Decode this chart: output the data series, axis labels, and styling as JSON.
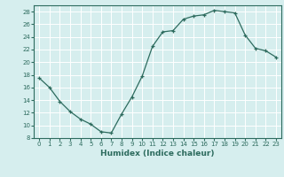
{
  "x": [
    0,
    1,
    2,
    3,
    4,
    5,
    6,
    7,
    8,
    9,
    10,
    11,
    12,
    13,
    14,
    15,
    16,
    17,
    18,
    19,
    20,
    21,
    22,
    23
  ],
  "y": [
    17.5,
    16.0,
    13.8,
    12.2,
    11.0,
    10.2,
    9.0,
    8.8,
    11.8,
    14.5,
    17.8,
    22.5,
    24.8,
    25.0,
    26.8,
    27.3,
    27.5,
    28.2,
    28.0,
    27.8,
    24.3,
    22.2,
    21.8,
    20.8
  ],
  "xlabel": "Humidex (Indice chaleur)",
  "xlim": [
    -0.5,
    23.5
  ],
  "ylim": [
    8,
    29
  ],
  "yticks": [
    8,
    10,
    12,
    14,
    16,
    18,
    20,
    22,
    24,
    26,
    28
  ],
  "xticks": [
    0,
    1,
    2,
    3,
    4,
    5,
    6,
    7,
    8,
    9,
    10,
    11,
    12,
    13,
    14,
    15,
    16,
    17,
    18,
    19,
    20,
    21,
    22,
    23
  ],
  "line_color": "#2d6b5e",
  "bg_color": "#d6eeee",
  "grid_color": "#ffffff",
  "label_fontsize": 6.5,
  "tick_fontsize": 5.0
}
